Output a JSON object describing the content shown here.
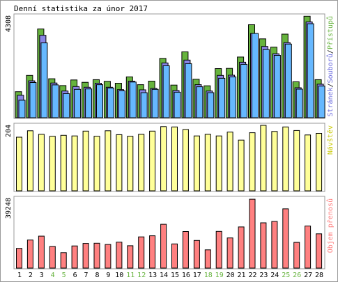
{
  "chart_data": [
    {
      "type": "bar",
      "title": "Denní statistika za únor 2017",
      "categories": [
        "1",
        "2",
        "3",
        "4",
        "5",
        "6",
        "7",
        "8",
        "9",
        "10",
        "11",
        "12",
        "13",
        "14",
        "15",
        "16",
        "17",
        "18",
        "19",
        "20",
        "21",
        "22",
        "23",
        "24",
        "25",
        "26",
        "27",
        "28"
      ],
      "weekend_days": [
        "4",
        "5",
        "11",
        "12",
        "18",
        "19",
        "25",
        "26"
      ],
      "ymax_label": "4308",
      "ymax": 4308,
      "legend": [
        "Stránek",
        "Souborů",
        "Přístupů"
      ],
      "series": [
        {
          "name": "Přístupů",
          "color": "#66b33d",
          "values": [
            1100,
            1790,
            3760,
            1650,
            1360,
            1600,
            1500,
            1610,
            1540,
            1460,
            1730,
            1400,
            1550,
            2510,
            1380,
            2790,
            1630,
            1350,
            2080,
            2090,
            2570,
            3940,
            3340,
            2990,
            3540,
            1520,
            4300,
            1610
          ]
        },
        {
          "name": "Souborů",
          "color": "#8a85e6",
          "values": [
            950,
            1560,
            3490,
            1470,
            1130,
            1320,
            1290,
            1460,
            1290,
            1190,
            1550,
            1180,
            1240,
            2320,
            1150,
            2440,
            1400,
            1130,
            1790,
            1800,
            2350,
            3570,
            3020,
            2710,
            3180,
            1270,
            4060,
            1420
          ]
        },
        {
          "name": "Stránek",
          "color": "#66b8ff",
          "values": [
            740,
            1490,
            3170,
            1390,
            1020,
            1200,
            1220,
            1400,
            1260,
            1140,
            1510,
            1060,
            1200,
            2200,
            1080,
            2290,
            1310,
            1060,
            1670,
            1730,
            2260,
            3570,
            2890,
            2640,
            3120,
            1210,
            3980,
            1340
          ]
        }
      ]
    },
    {
      "type": "bar",
      "ymax_label": "204",
      "ymax": 204,
      "legend": [
        "Návštěv"
      ],
      "series": [
        {
          "name": "Návštěv",
          "color": "#ffff99",
          "values": [
            167,
            187,
            176,
            170,
            173,
            171,
            186,
            170,
            187,
            175,
            170,
            176,
            186,
            200,
            199,
            191,
            171,
            176,
            171,
            183,
            158,
            181,
            204,
            185,
            199,
            188,
            174,
            179
          ]
        }
      ]
    },
    {
      "type": "bar",
      "ymax_label": "39248",
      "ymax": 39248,
      "legend": [
        "Objem přenosů"
      ],
      "series": [
        {
          "name": "Objem přenosů",
          "color": "#ff8080",
          "values": [
            11100,
            15800,
            18000,
            12200,
            8700,
            12500,
            13900,
            14000,
            13300,
            14600,
            12600,
            17600,
            18200,
            24700,
            13600,
            20600,
            15600,
            10300,
            20700,
            17000,
            23200,
            38800,
            25500,
            26300,
            33400,
            14500,
            23700,
            19300
          ]
        }
      ]
    }
  ]
}
